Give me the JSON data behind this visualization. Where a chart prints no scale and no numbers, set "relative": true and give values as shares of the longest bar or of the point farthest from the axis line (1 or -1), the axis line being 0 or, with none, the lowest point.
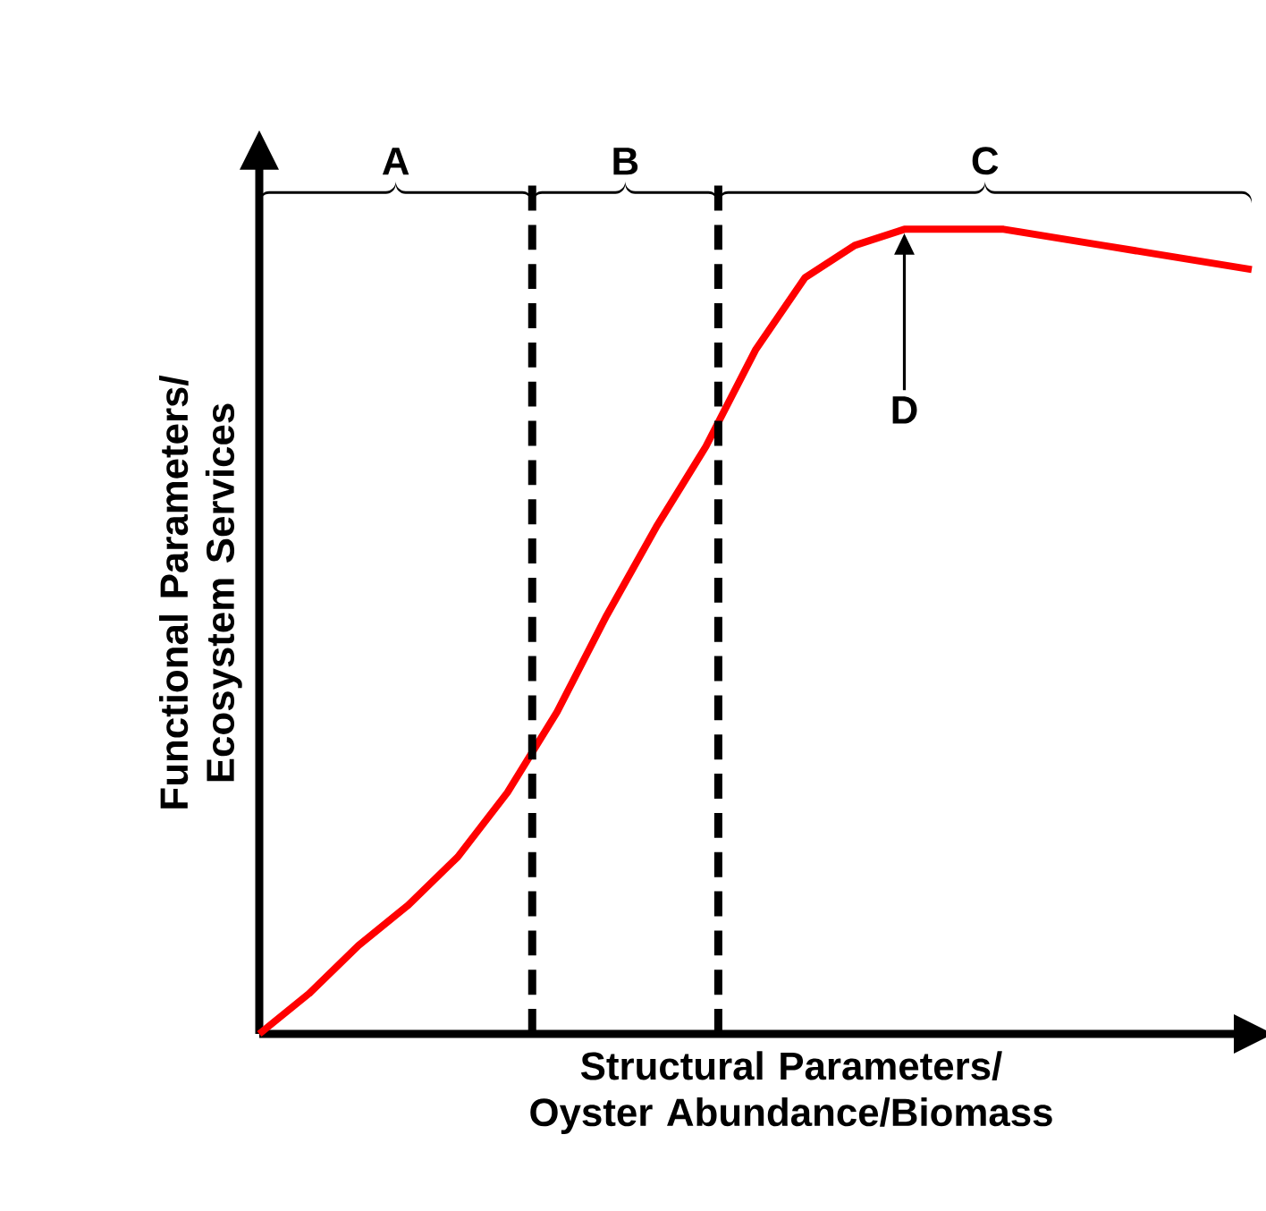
{
  "chart_data": {
    "type": "line",
    "relative": true,
    "color": "#ff0000",
    "categories": [
      null,
      null,
      null,
      null,
      null,
      null,
      null,
      null,
      null,
      null,
      null,
      null,
      null,
      null,
      null,
      null,
      null,
      null,
      null,
      null,
      null
    ],
    "values": [
      0,
      0.05,
      0.11,
      0.16,
      0.22,
      0.3,
      0.4,
      0.52,
      0.63,
      0.73,
      0.85,
      0.94,
      0.98,
      1.0,
      1.0,
      1.0,
      0.99,
      0.98,
      0.97,
      0.96,
      0.95
    ],
    "xlabel": "Structural Parameters/ Oyster Abundance/Biomass",
    "ylabel": "Functional Parameters/ Ecosystem Services",
    "annotations": [
      "A",
      "B",
      "C",
      "D"
    ]
  }
}
